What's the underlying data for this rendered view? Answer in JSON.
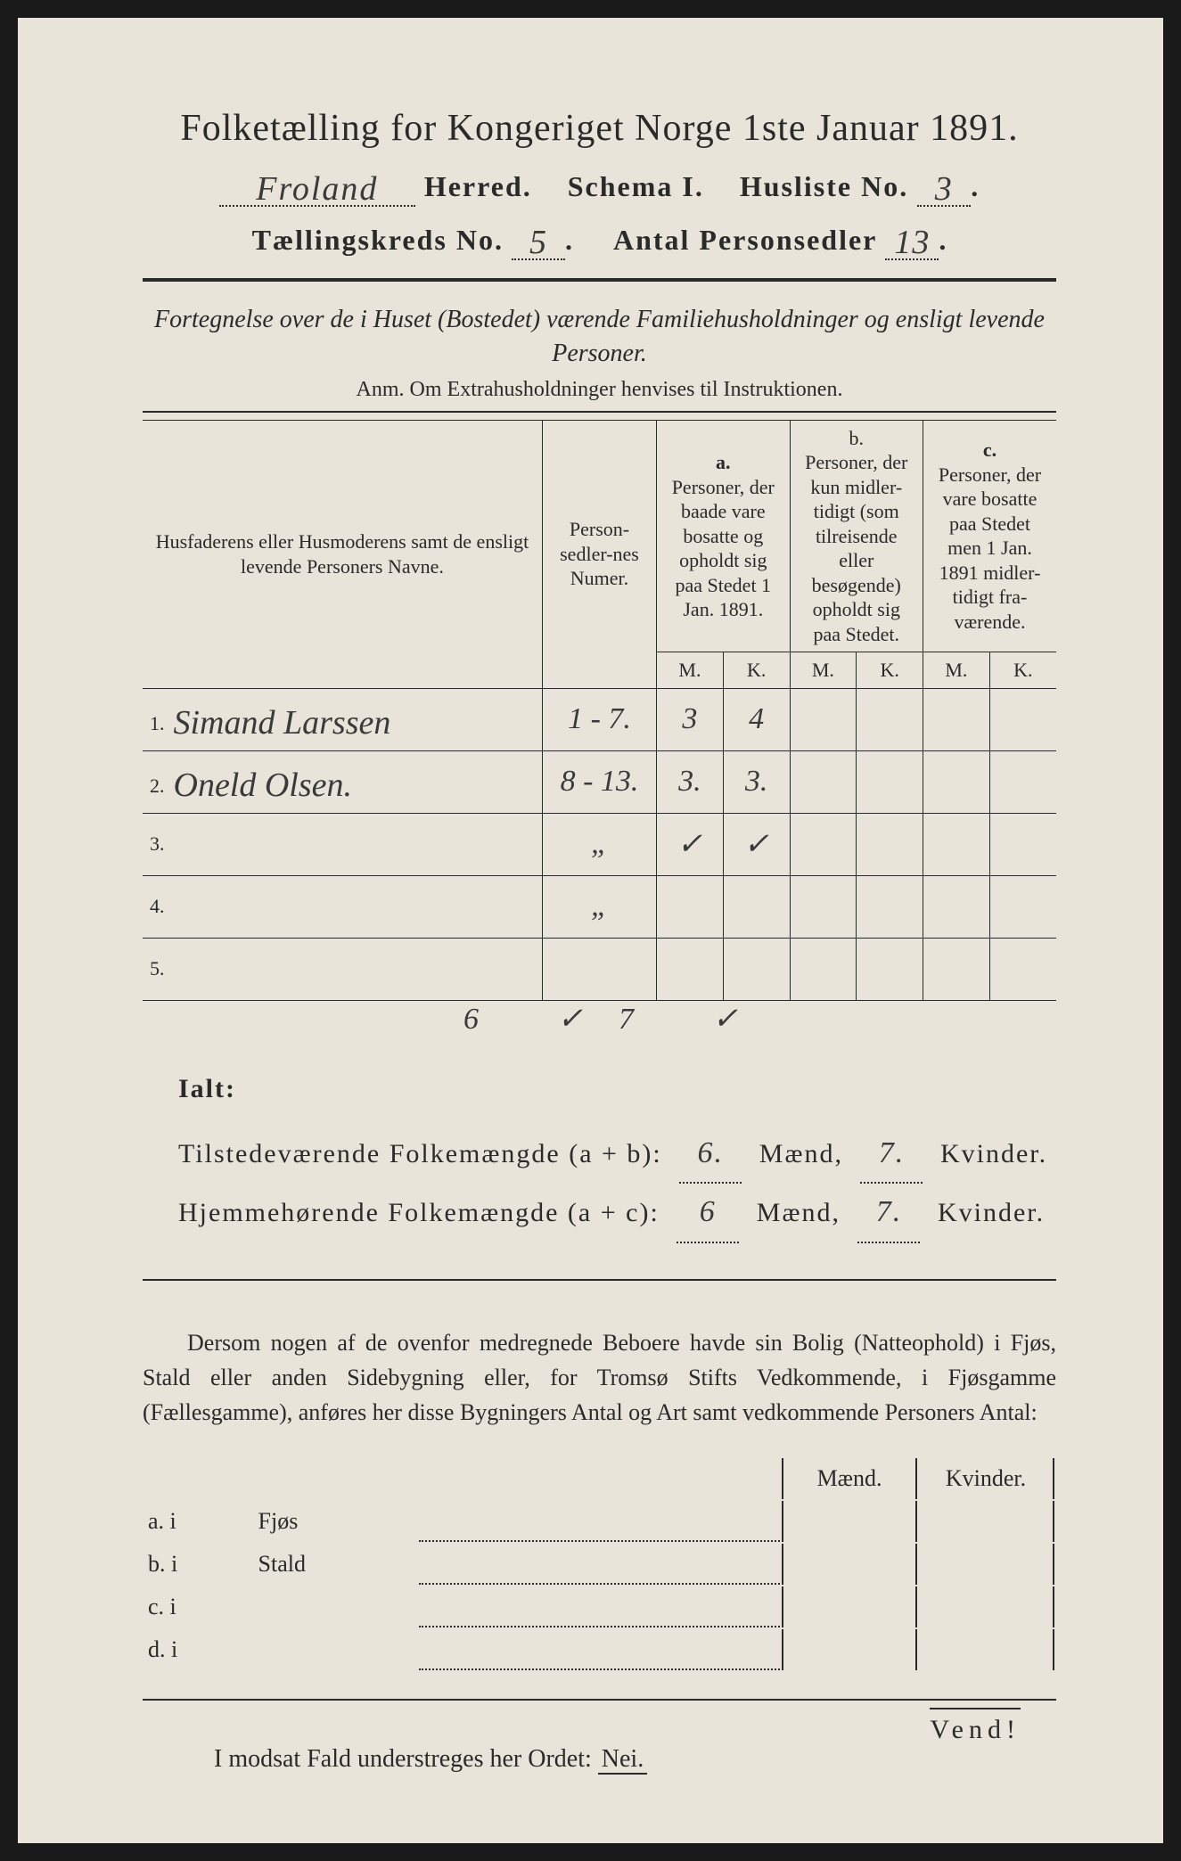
{
  "title": "Folketælling for Kongeriget Norge 1ste Januar 1891.",
  "header": {
    "herred_value": "Froland",
    "herred_label": "Herred.",
    "schema_label": "Schema I.",
    "husliste_label": "Husliste No.",
    "husliste_value": "3",
    "kreds_label": "Tællingskreds No.",
    "kreds_value": "5",
    "personsedler_label": "Antal Personsedler",
    "personsedler_value": "13"
  },
  "subtitle": "Fortegnelse over de i Huset (Bostedet) værende Familiehusholdninger og ensligt levende Personer.",
  "anm": "Anm.  Om Extrahusholdninger henvises til Instruktionen.",
  "table": {
    "col1": "Husfaderens eller Husmoderens samt de ensligt levende Personers Navne.",
    "col2": "Person-sedler-nes Numer.",
    "col_a_label": "a.",
    "col_a": "Personer, der baade vare bosatte og opholdt sig paa Stedet 1 Jan. 1891.",
    "col_b_label": "b.",
    "col_b": "Personer, der kun midler-tidigt (som tilreisende eller besøgende) opholdt sig paa Stedet.",
    "col_c_label": "c.",
    "col_c": "Personer, der vare bosatte paa Stedet men 1 Jan. 1891 midler-tidigt fra-værende.",
    "m": "M.",
    "k": "K.",
    "rows": [
      {
        "n": "1.",
        "name": "Simand Larssen",
        "numer": "1 - 7.",
        "am": "3",
        "ak": "4",
        "bm": "",
        "bk": "",
        "cm": "",
        "ck": ""
      },
      {
        "n": "2.",
        "name": "Oneld Olsen.",
        "numer": "8 - 13.",
        "am": "3.",
        "ak": "3.",
        "bm": "",
        "bk": "",
        "cm": "",
        "ck": ""
      },
      {
        "n": "3.",
        "name": "",
        "numer": "„",
        "am": "✓",
        "ak": "✓",
        "bm": "",
        "bk": "",
        "cm": "",
        "ck": ""
      },
      {
        "n": "4.",
        "name": "",
        "numer": "„",
        "am": "",
        "ak": "",
        "bm": "",
        "bk": "",
        "cm": "",
        "ck": ""
      },
      {
        "n": "5.",
        "name": "",
        "numer": "",
        "am": "",
        "ak": "",
        "bm": "",
        "bk": "",
        "cm": "",
        "ck": ""
      }
    ],
    "check_m": "6 ✓",
    "check_k": "7 ✓"
  },
  "totals": {
    "ialt": "Ialt:",
    "line1_label": "Tilstedeværende Folkemængde (a + b):",
    "line2_label": "Hjemmehørende Folkemængde (a + c):",
    "maend": "Mænd,",
    "kvinder": "Kvinder.",
    "l1_m": "6.",
    "l1_k": "7.",
    "l2_m": "6",
    "l2_k": "7."
  },
  "paragraph": "Dersom nogen af de ovenfor medregnede Beboere havde sin Bolig (Natteophold) i Fjøs, Stald eller anden Sidebygning eller, for Tromsø Stifts Vedkommende, i Fjøsgamme (Fællesgamme), anføres her disse Bygningers Antal og Art samt vedkommende Personers Antal:",
  "subtable": {
    "maend": "Mænd.",
    "kvinder": "Kvinder.",
    "rows": [
      {
        "label": "a.  i",
        "name": "Fjøs"
      },
      {
        "label": "b.  i",
        "name": "Stald"
      },
      {
        "label": "c.  i",
        "name": ""
      },
      {
        "label": "d.  i",
        "name": ""
      }
    ]
  },
  "footer": "I modsat Fald understreges her Ordet:",
  "nei": "Nei.",
  "vend": "Vend!"
}
